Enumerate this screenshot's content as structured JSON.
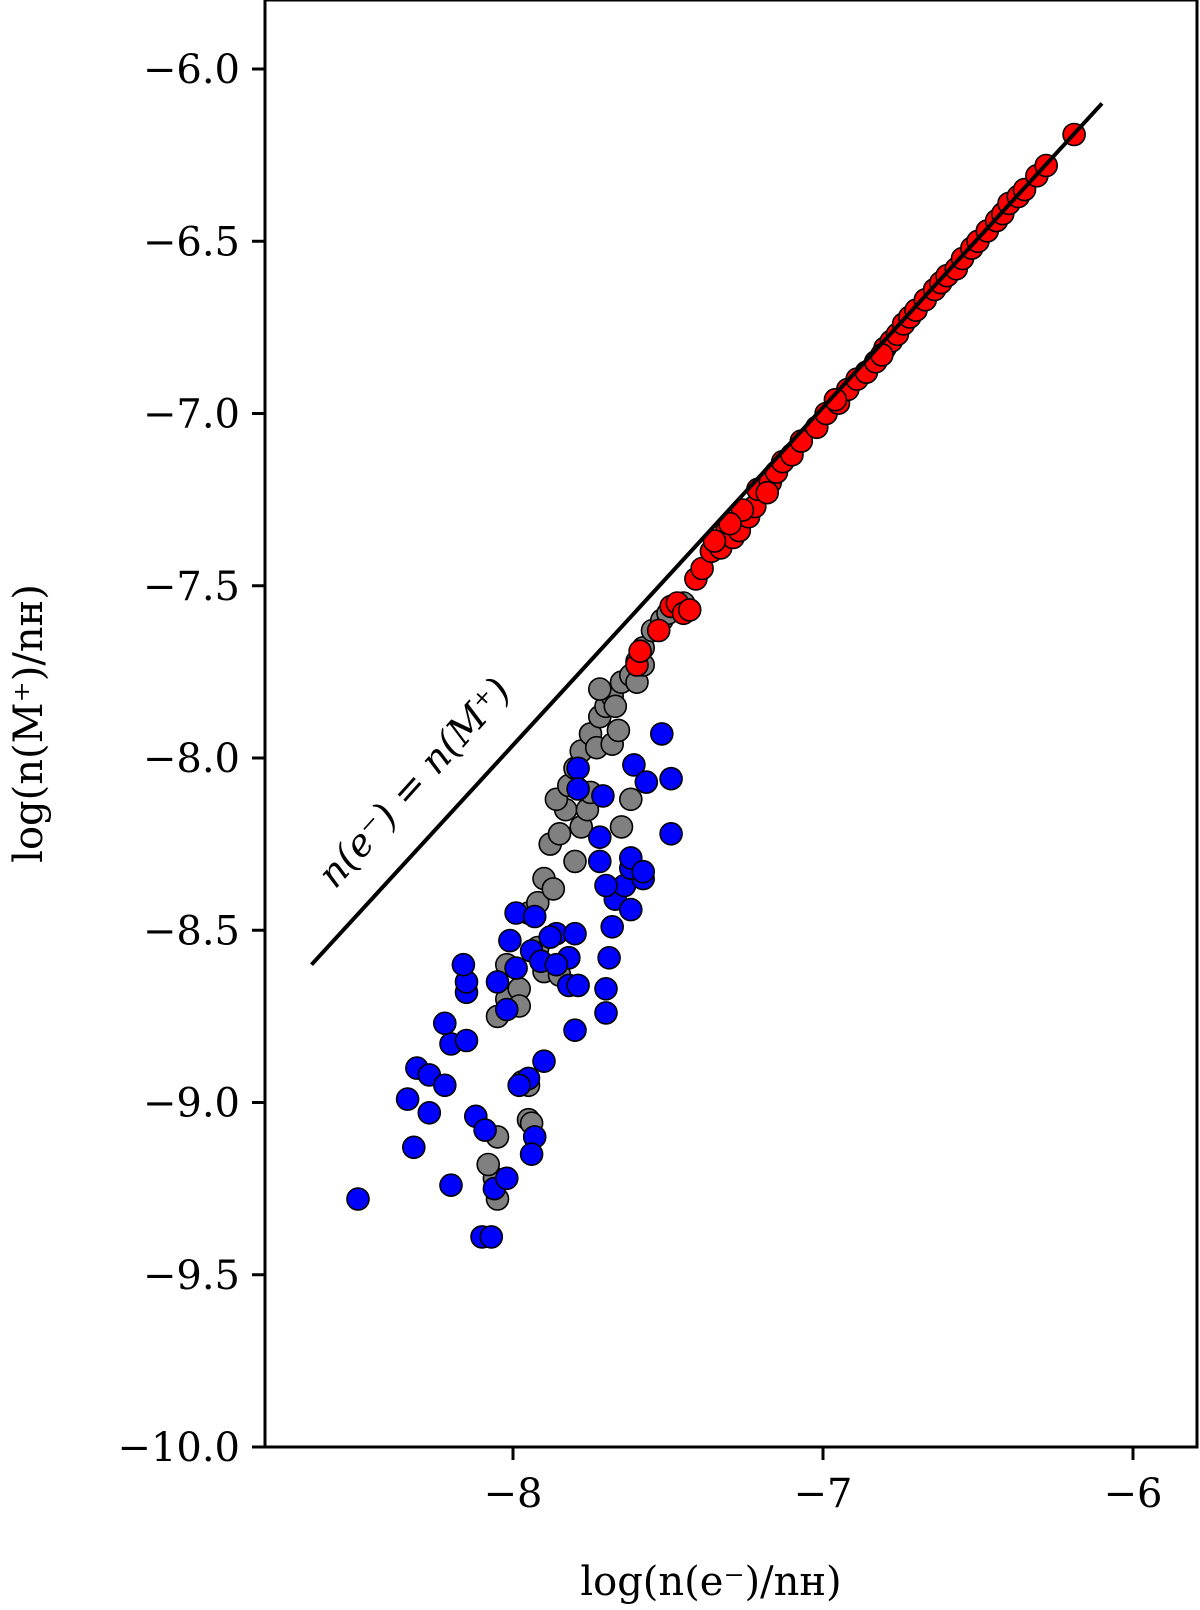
{
  "chart_data": {
    "type": "scatter",
    "title": "",
    "xlabel": "log(n(e⁻)/nʜ)",
    "ylabel": "log(n(M⁺)/nʜ)",
    "xlim": [
      -8.85,
      -5.8
    ],
    "ylim": [
      -10.0,
      -5.8
    ],
    "xticks": [
      -8,
      -7,
      -6
    ],
    "xtick_labels": [
      "−8",
      "−7",
      "−6"
    ],
    "yticks": [
      -10.0,
      -9.5,
      -9.0,
      -8.5,
      -8.0,
      -7.5,
      -7.0,
      -6.5,
      -6.0
    ],
    "ytick_labels": [
      "−10.0",
      "−9.5",
      "−9.0",
      "−8.5",
      "−8.0",
      "−7.5",
      "−7.0",
      "−6.5",
      "−6.0"
    ],
    "grid": false,
    "reference_line": {
      "label": "n(e⁻) = n(M⁺)",
      "x": [
        -8.65,
        -6.1
      ],
      "y": [
        -8.6,
        -6.1
      ],
      "color": "#000000"
    },
    "series": [
      {
        "color": "#808080",
        "points": [
          [
            -8.05,
            -9.28
          ],
          [
            -8.06,
            -9.22
          ],
          [
            -8.08,
            -9.18
          ],
          [
            -8.05,
            -9.1
          ],
          [
            -8.05,
            -8.75
          ],
          [
            -8.02,
            -8.7
          ],
          [
            -7.98,
            -8.67
          ],
          [
            -7.95,
            -8.45
          ],
          [
            -7.92,
            -8.42
          ],
          [
            -7.9,
            -8.35
          ],
          [
            -7.88,
            -8.25
          ],
          [
            -7.85,
            -8.22
          ],
          [
            -7.83,
            -8.15
          ],
          [
            -7.86,
            -8.12
          ],
          [
            -7.82,
            -8.08
          ],
          [
            -7.8,
            -8.03
          ],
          [
            -7.78,
            -7.98
          ],
          [
            -7.75,
            -7.93
          ],
          [
            -7.72,
            -7.88
          ],
          [
            -7.7,
            -7.85
          ],
          [
            -7.68,
            -7.82
          ],
          [
            -7.72,
            -7.8
          ],
          [
            -7.65,
            -7.78
          ],
          [
            -7.62,
            -7.76
          ],
          [
            -7.6,
            -7.72
          ],
          [
            -7.58,
            -7.68
          ],
          [
            -7.55,
            -7.63
          ],
          [
            -7.52,
            -7.6
          ],
          [
            -7.48,
            -7.57
          ],
          [
            -7.45,
            -7.55
          ],
          [
            -7.73,
            -7.97
          ],
          [
            -7.68,
            -7.96
          ],
          [
            -7.62,
            -8.12
          ],
          [
            -7.65,
            -8.2
          ],
          [
            -7.95,
            -9.05
          ],
          [
            -7.95,
            -8.95
          ],
          [
            -7.9,
            -8.62
          ],
          [
            -7.82,
            -8.58
          ],
          [
            -7.87,
            -8.38
          ],
          [
            -7.8,
            -8.3
          ],
          [
            -7.78,
            -8.2
          ],
          [
            -7.76,
            -8.15
          ],
          [
            -7.75,
            -8.1
          ],
          [
            -7.66,
            -7.92
          ],
          [
            -7.67,
            -7.85
          ],
          [
            -7.6,
            -7.78
          ],
          [
            -7.92,
            -8.55
          ],
          [
            -7.98,
            -8.72
          ],
          [
            -8.02,
            -8.6
          ],
          [
            -7.85,
            -8.63
          ],
          [
            -7.97,
            -8.94
          ],
          [
            -7.94,
            -9.06
          ],
          [
            -7.58,
            -7.73
          ],
          [
            -7.5,
            -7.58
          ]
        ]
      },
      {
        "color": "#0000ff",
        "points": [
          [
            -8.5,
            -9.28
          ],
          [
            -8.1,
            -9.39
          ],
          [
            -8.07,
            -9.39
          ],
          [
            -8.06,
            -9.25
          ],
          [
            -8.02,
            -9.22
          ],
          [
            -8.2,
            -9.24
          ],
          [
            -8.32,
            -9.13
          ],
          [
            -8.12,
            -9.04
          ],
          [
            -8.09,
            -9.08
          ],
          [
            -8.27,
            -9.03
          ],
          [
            -8.34,
            -8.99
          ],
          [
            -8.31,
            -8.9
          ],
          [
            -8.27,
            -8.92
          ],
          [
            -8.22,
            -8.95
          ],
          [
            -8.2,
            -8.83
          ],
          [
            -8.22,
            -8.77
          ],
          [
            -8.15,
            -8.82
          ],
          [
            -8.05,
            -8.65
          ],
          [
            -8.15,
            -8.68
          ],
          [
            -8.15,
            -8.65
          ],
          [
            -8.16,
            -8.6
          ],
          [
            -8.02,
            -8.73
          ],
          [
            -7.99,
            -8.61
          ],
          [
            -7.99,
            -8.45
          ],
          [
            -8.01,
            -8.53
          ],
          [
            -7.95,
            -8.93
          ],
          [
            -7.98,
            -8.95
          ],
          [
            -7.93,
            -9.1
          ],
          [
            -7.94,
            -9.15
          ],
          [
            -7.9,
            -8.88
          ],
          [
            -7.94,
            -8.56
          ],
          [
            -7.91,
            -8.59
          ],
          [
            -7.93,
            -8.46
          ],
          [
            -7.86,
            -8.51
          ],
          [
            -7.8,
            -8.51
          ],
          [
            -7.82,
            -8.58
          ],
          [
            -7.82,
            -8.66
          ],
          [
            -7.79,
            -8.66
          ],
          [
            -7.8,
            -8.79
          ],
          [
            -7.7,
            -8.74
          ],
          [
            -7.7,
            -8.67
          ],
          [
            -7.69,
            -8.58
          ],
          [
            -7.68,
            -8.49
          ],
          [
            -7.67,
            -8.41
          ],
          [
            -7.64,
            -8.37
          ],
          [
            -7.62,
            -8.44
          ],
          [
            -7.58,
            -8.35
          ],
          [
            -7.62,
            -8.32
          ],
          [
            -7.62,
            -8.29
          ],
          [
            -7.58,
            -8.33
          ],
          [
            -7.7,
            -8.37
          ],
          [
            -7.72,
            -8.3
          ],
          [
            -7.72,
            -8.23
          ],
          [
            -7.79,
            -8.03
          ],
          [
            -7.79,
            -8.09
          ],
          [
            -7.71,
            -8.11
          ],
          [
            -7.61,
            -8.02
          ],
          [
            -7.57,
            -8.07
          ],
          [
            -7.52,
            -7.93
          ],
          [
            -7.49,
            -8.06
          ],
          [
            -7.49,
            -8.22
          ],
          [
            -7.86,
            -8.6
          ],
          [
            -7.88,
            -8.52
          ]
        ]
      },
      {
        "color": "#ff0000",
        "points": [
          [
            -7.6,
            -7.73
          ],
          [
            -7.59,
            -7.69
          ],
          [
            -7.53,
            -7.63
          ],
          [
            -7.49,
            -7.56
          ],
          [
            -7.47,
            -7.55
          ],
          [
            -7.45,
            -7.58
          ],
          [
            -7.43,
            -7.57
          ],
          [
            -7.41,
            -7.48
          ],
          [
            -7.39,
            -7.45
          ],
          [
            -7.36,
            -7.4
          ],
          [
            -7.33,
            -7.39
          ],
          [
            -7.31,
            -7.34
          ],
          [
            -7.29,
            -7.36
          ],
          [
            -7.27,
            -7.34
          ],
          [
            -7.24,
            -7.3
          ],
          [
            -7.22,
            -7.27
          ],
          [
            -7.21,
            -7.22
          ],
          [
            -7.17,
            -7.2
          ],
          [
            -7.15,
            -7.17
          ],
          [
            -7.13,
            -7.14
          ],
          [
            -7.1,
            -7.12
          ],
          [
            -7.07,
            -7.08
          ],
          [
            -7.02,
            -7.04
          ],
          [
            -6.99,
            -7.0
          ],
          [
            -6.95,
            -6.97
          ],
          [
            -6.92,
            -6.93
          ],
          [
            -6.89,
            -6.9
          ],
          [
            -6.86,
            -6.88
          ],
          [
            -6.83,
            -6.85
          ],
          [
            -6.8,
            -6.81
          ],
          [
            -6.78,
            -6.79
          ],
          [
            -6.76,
            -6.77
          ],
          [
            -6.74,
            -6.74
          ],
          [
            -6.72,
            -6.72
          ],
          [
            -6.7,
            -6.7
          ],
          [
            -6.67,
            -6.67
          ],
          [
            -6.64,
            -6.64
          ],
          [
            -6.62,
            -6.62
          ],
          [
            -6.6,
            -6.6
          ],
          [
            -6.57,
            -6.58
          ],
          [
            -6.55,
            -6.55
          ],
          [
            -6.52,
            -6.52
          ],
          [
            -6.5,
            -6.5
          ],
          [
            -6.47,
            -6.47
          ],
          [
            -6.44,
            -6.44
          ],
          [
            -6.42,
            -6.42
          ],
          [
            -6.4,
            -6.39
          ],
          [
            -6.37,
            -6.37
          ],
          [
            -6.35,
            -6.35
          ],
          [
            -6.31,
            -6.31
          ],
          [
            -6.28,
            -6.28
          ],
          [
            -6.19,
            -6.19
          ],
          [
            -7.18,
            -7.23
          ],
          [
            -7.26,
            -7.28
          ],
          [
            -7.3,
            -7.32
          ],
          [
            -7.35,
            -7.37
          ],
          [
            -6.96,
            -6.96
          ],
          [
            -6.81,
            -6.83
          ]
        ]
      }
    ]
  }
}
